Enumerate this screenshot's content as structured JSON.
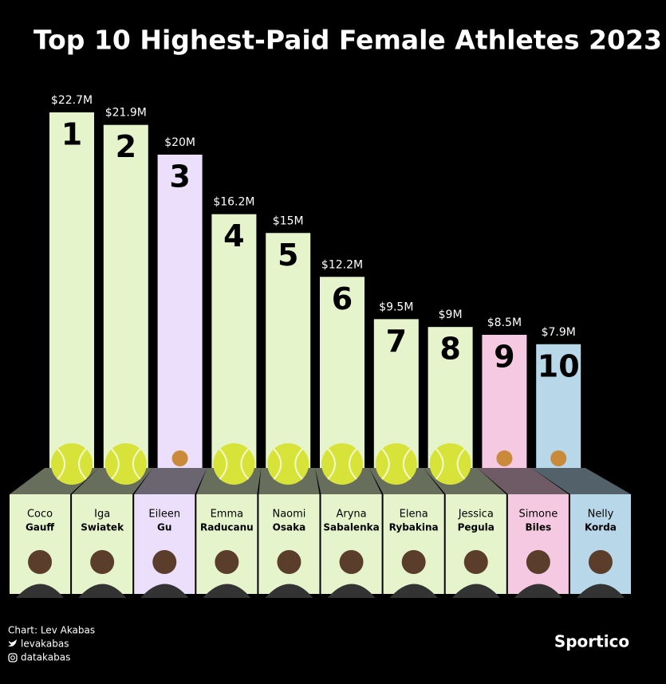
{
  "chart_data": {
    "type": "bar",
    "title": "Top 10 Highest-Paid Female Athletes 2023",
    "ranks": [
      "1",
      "2",
      "3",
      "4",
      "5",
      "6",
      "7",
      "8",
      "9",
      "10"
    ],
    "first_names": [
      "Coco",
      "Iga",
      "Eileen",
      "Emma",
      "Naomi",
      "Aryna",
      "Elena",
      "Jessica",
      "Simone",
      "Nelly"
    ],
    "last_names": [
      "Gauff",
      "Swiatek",
      "Gu",
      "Raducanu",
      "Osaka",
      "Sabalenka",
      "Rybakina",
      "Pegula",
      "Biles",
      "Korda"
    ],
    "values": [
      22.7,
      21.9,
      20,
      16.2,
      15,
      12.2,
      9.5,
      9,
      8.5,
      7.9
    ],
    "value_labels": [
      "$22.7M",
      "$21.9M",
      "$20M",
      "$16.2M",
      "$15M",
      "$12.2M",
      "$9.5M",
      "$9M",
      "$8.5M",
      "$7.9M"
    ],
    "colors": [
      "#e5f4cb",
      "#e5f4cb",
      "#ebdffb",
      "#e5f4cb",
      "#e5f4cb",
      "#e5f4cb",
      "#e5f4cb",
      "#e5f4cb",
      "#f6c9e3",
      "#b8d8ea"
    ],
    "credit": "Chart: Lev Akabas",
    "twitter": "levakabas",
    "instagram": "datakabas",
    "brand": "Sportico"
  }
}
